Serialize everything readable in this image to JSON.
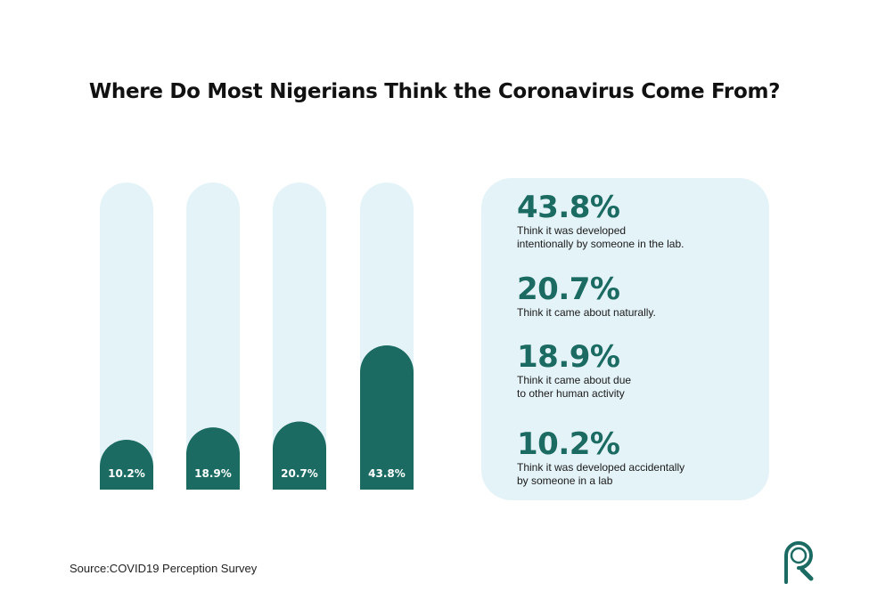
{
  "title": "Where Do Most Nigerians Think the Coronavirus Come From?",
  "source": "Source:COVID19 Perception Survey",
  "colors": {
    "bar": "#1b6b62",
    "track": "#e4f3f8",
    "text": "#1a1a1a"
  },
  "logo_icon": "magnifier-r-logo-icon",
  "chart_data": {
    "type": "bar",
    "title": "Where Do Most Nigerians Think the Coronavirus Come From?",
    "values": [
      10.2,
      18.9,
      20.7,
      43.8
    ],
    "labels": [
      "10.2%",
      "18.9%",
      "20.7%",
      "43.8%"
    ],
    "ylim": [
      0,
      100
    ],
    "xlabel": "",
    "ylabel": "",
    "grid": false
  },
  "stats": [
    {
      "value": "43.8%",
      "description": "Think it was developed\nintentionally by someone in the lab."
    },
    {
      "value": "20.7%",
      "description": "Think it came about naturally."
    },
    {
      "value": "18.9%",
      "description": "Think it came about due\nto other human activity"
    },
    {
      "value": "10.2%",
      "description": "Think it was developed accidentally\nby someone in a lab"
    }
  ]
}
